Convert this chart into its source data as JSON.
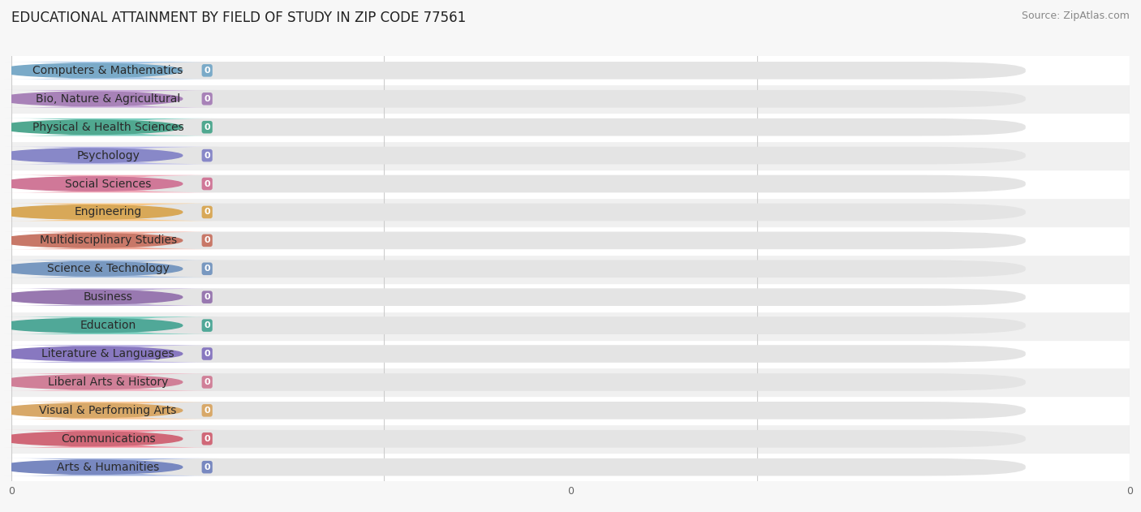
{
  "title": "EDUCATIONAL ATTAINMENT BY FIELD OF STUDY IN ZIP CODE 77561",
  "source": "Source: ZipAtlas.com",
  "categories": [
    "Computers & Mathematics",
    "Bio, Nature & Agricultural",
    "Physical & Health Sciences",
    "Psychology",
    "Social Sciences",
    "Engineering",
    "Multidisciplinary Studies",
    "Science & Technology",
    "Business",
    "Education",
    "Literature & Languages",
    "Liberal Arts & History",
    "Visual & Performing Arts",
    "Communications",
    "Arts & Humanities"
  ],
  "values": [
    0,
    0,
    0,
    0,
    0,
    0,
    0,
    0,
    0,
    0,
    0,
    0,
    0,
    0,
    0
  ],
  "bar_colors": [
    "#a8c8e8",
    "#c8a8d8",
    "#7ecfc0",
    "#b8b8e8",
    "#f0a8b8",
    "#f8c888",
    "#f0a898",
    "#a8c0e0",
    "#c0b0d8",
    "#7ecfc0",
    "#b8b0e0",
    "#f0b0c0",
    "#f8c898",
    "#f08898",
    "#a8b8e0"
  ],
  "circle_colors": [
    "#7aaac8",
    "#a882b8",
    "#50a890",
    "#8888c8",
    "#d07898",
    "#d8a858",
    "#c87868",
    "#7898c0",
    "#9878b0",
    "#50a898",
    "#8878c0",
    "#d08098",
    "#d8a868",
    "#d06878",
    "#7888c0"
  ],
  "background_color": "#f7f7f7",
  "row_colors": [
    "#ffffff",
    "#f0f0f0"
  ],
  "bar_bg_color": "#e4e4e4",
  "xlim_max": 1.0,
  "n_xticks": 3,
  "xtick_labels": [
    "0",
    "0",
    "0"
  ],
  "title_fontsize": 12,
  "source_fontsize": 9,
  "bar_label_fontsize": 10,
  "value_fontsize": 8
}
